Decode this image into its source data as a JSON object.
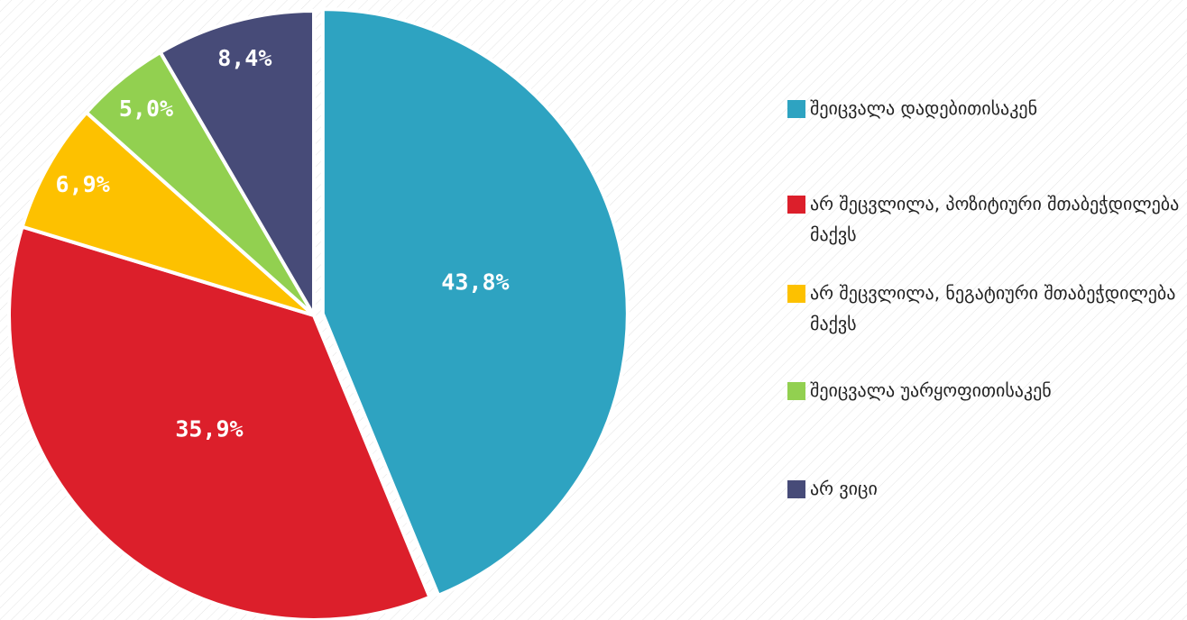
{
  "chart_data": {
    "type": "pie",
    "series": [
      {
        "name": "შეიცვალა დადებითისაკენ",
        "color": "#2ea3c1",
        "values": [
          43.8
        ],
        "value_labels": [
          "43,8%"
        ]
      },
      {
        "name": "არ შეცვლილა, პოზიტიური შთაბეჭდილება მაქვს",
        "color": "#dc1f2b",
        "values": [
          35.9
        ],
        "value_labels": [
          "35,9%"
        ]
      },
      {
        "name": "არ შეცვლილა, ნეგატიური შთაბეჭდილება მაქვს",
        "color": "#fdc100",
        "values": [
          6.9
        ],
        "value_labels": [
          "6,9%"
        ]
      },
      {
        "name": "შეიცვალა უარყოფითისაკენ",
        "color": "#92d050",
        "values": [
          5.0
        ],
        "value_labels": [
          "5,0%"
        ]
      },
      {
        "name": "არ ვიცი",
        "color": "#474b78",
        "values": [
          8.4
        ],
        "value_labels": [
          "8,4%"
        ]
      }
    ],
    "legend": "right"
  }
}
